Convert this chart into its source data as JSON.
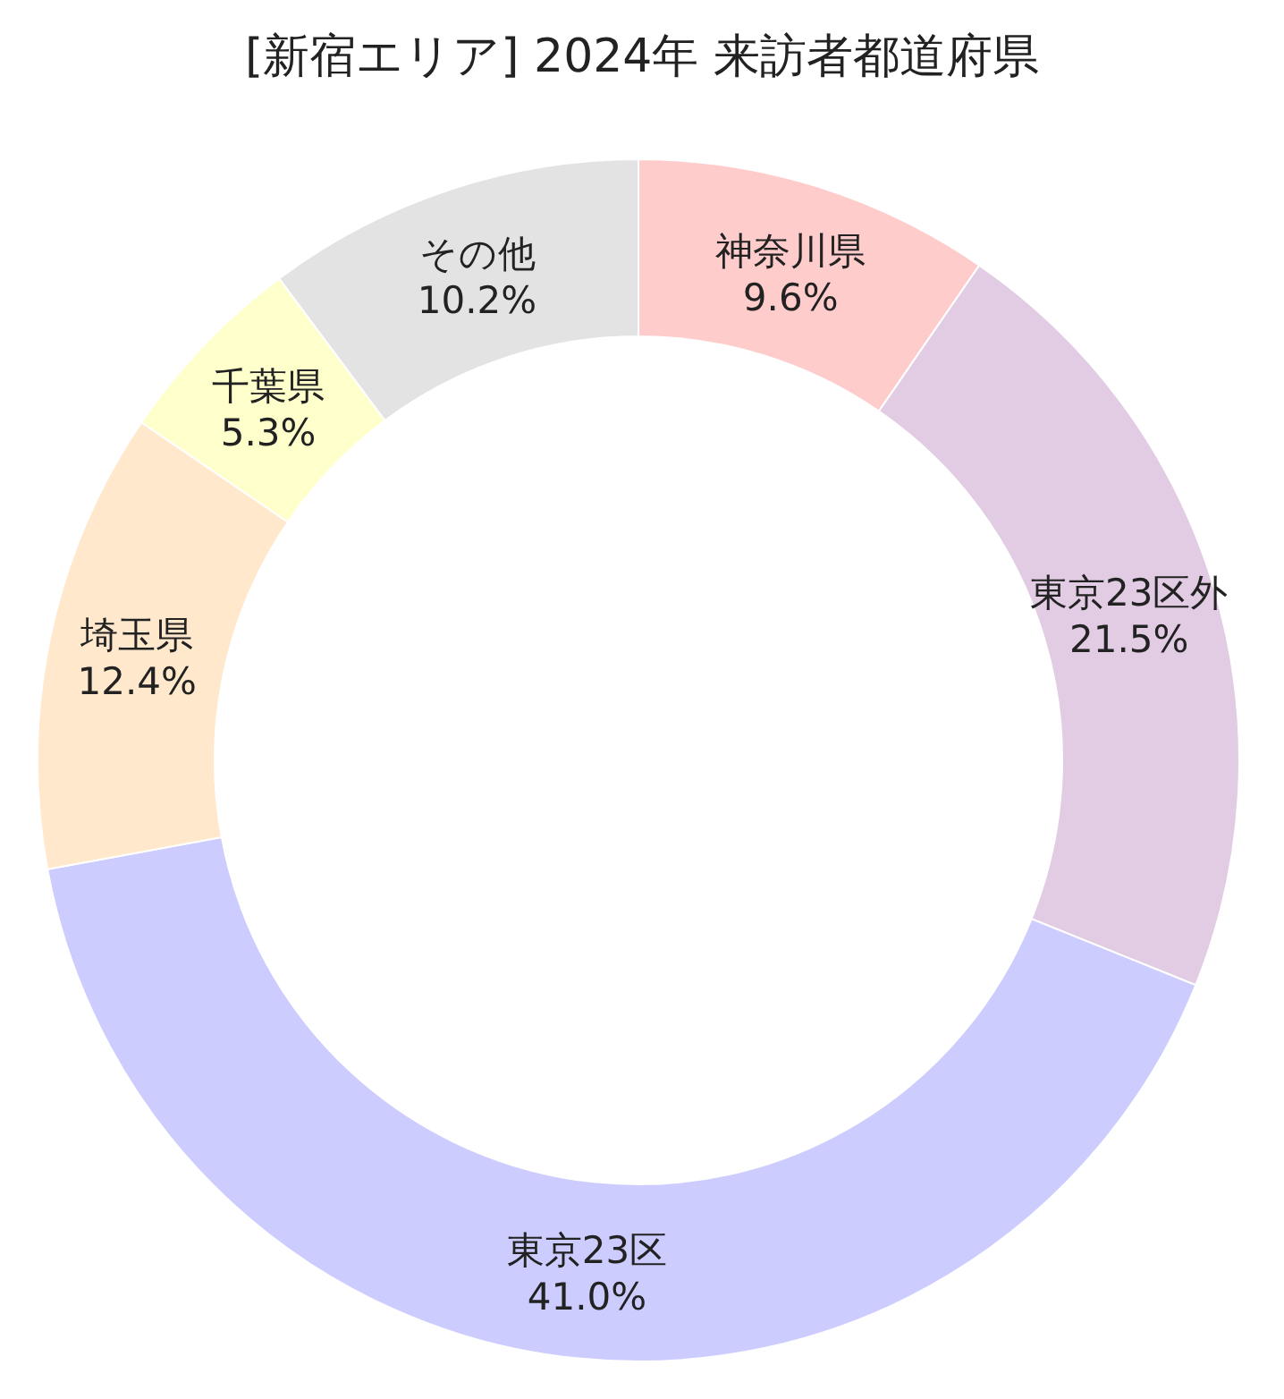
{
  "chart_data": {
    "type": "donut",
    "title": "[新宿エリア] 2024年 来訪者都道府県",
    "categories": [
      "神奈川県",
      "東京23区外",
      "東京23区",
      "埼玉県",
      "千葉県",
      "その他"
    ],
    "values": [
      9.6,
      21.5,
      41.0,
      12.4,
      5.3,
      10.2
    ],
    "colors": [
      "#ffcccc",
      "#e1cce3",
      "#ccccff",
      "#ffe8cc",
      "#ffffcc",
      "#e3e3e3"
    ],
    "value_labels": [
      "9.6%",
      "21.5%",
      "41.0%",
      "12.4%",
      "5.3%",
      "10.2%"
    ]
  }
}
